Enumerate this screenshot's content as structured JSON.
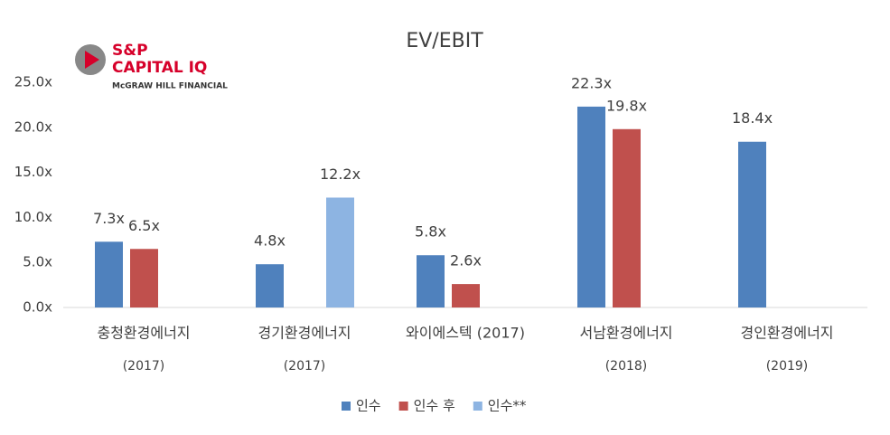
{
  "logo": {
    "lines": [
      "S&P",
      "CAPITAL IQ",
      "McGRAW HILL FINANCIAL"
    ]
  },
  "chart_data": {
    "type": "bar",
    "title": "EV/EBIT",
    "categories": [
      [
        "충청환경에너지",
        "(2017)"
      ],
      [
        "경기환경에너지",
        "(2017)"
      ],
      [
        "와이에스텍 (2017)"
      ],
      [
        "서남환경에너지",
        "(2018)"
      ],
      [
        "경인환경에너지",
        "(2019)"
      ]
    ],
    "series": [
      {
        "name": "인수",
        "color": "#4f81bd",
        "values": [
          7.3,
          4.8,
          5.8,
          22.3,
          18.4
        ],
        "value_labels": [
          "7.3x",
          "4.8x",
          "5.8x",
          "22.3x",
          "18.4x"
        ]
      },
      {
        "name": "인수 후",
        "color": "#c0504d",
        "values": [
          6.5,
          null,
          2.6,
          19.8,
          null
        ],
        "value_labels": [
          "6.5x",
          null,
          "2.6x",
          "19.8x",
          null
        ]
      },
      {
        "name": "인수**",
        "color": "#8db4e2",
        "values": [
          null,
          12.2,
          null,
          null,
          null
        ],
        "value_labels": [
          null,
          "12.2x",
          null,
          null,
          null
        ]
      }
    ],
    "ylim": [
      0,
      25
    ],
    "yticks": [
      {
        "value": 0,
        "label": "0.0x"
      },
      {
        "value": 5,
        "label": "5.0x"
      },
      {
        "value": 10,
        "label": "10.0x"
      },
      {
        "value": 15,
        "label": "15.0x"
      },
      {
        "value": 20,
        "label": "20.0x"
      },
      {
        "value": 25,
        "label": "25.0x"
      }
    ],
    "grid": false,
    "legend": "bottom"
  }
}
